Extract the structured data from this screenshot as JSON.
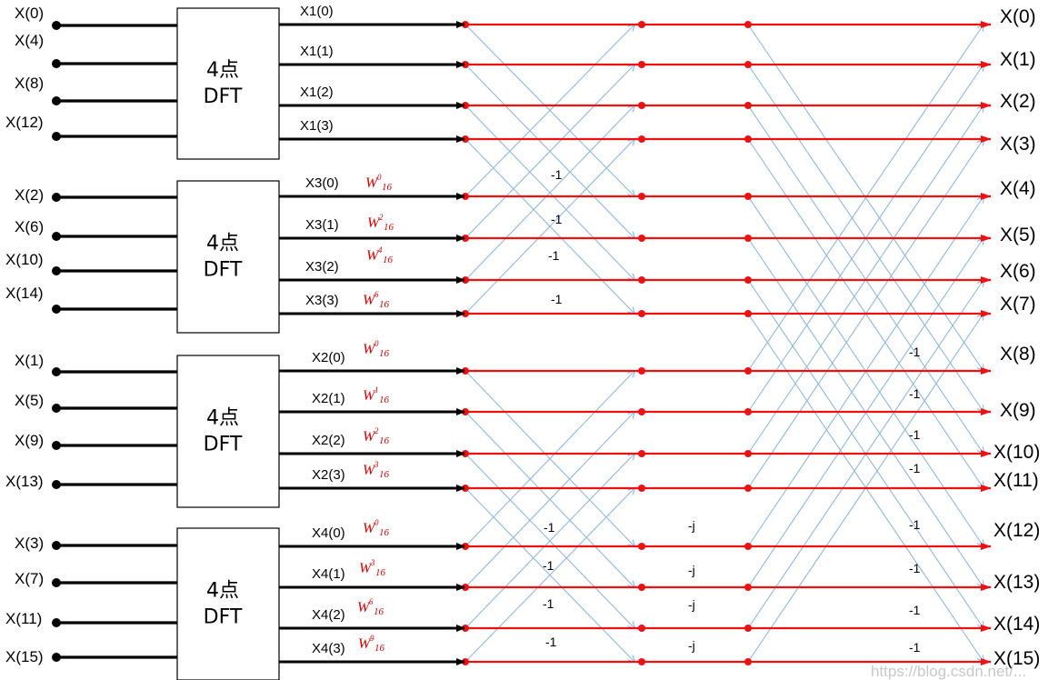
{
  "inputs": [
    "X(0)",
    "X(4)",
    "X(8)",
    "X(12)",
    "X(2)",
    "X(6)",
    "X(10)",
    "X(14)",
    "X(1)",
    "X(5)",
    "X(9)",
    "X(13)",
    "X(3)",
    "X(7)",
    "X(11)",
    "X(15)"
  ],
  "dft_blocks": [
    {
      "line1": "4点",
      "line2": "DFT"
    },
    {
      "line1": "4点",
      "line2": "DFT"
    },
    {
      "line1": "4点",
      "line2": "DFT"
    },
    {
      "line1": "4点",
      "line2": "DFT"
    }
  ],
  "intermediates": [
    "X1(0)",
    "X1(1)",
    "X1(2)",
    "X1(3)",
    "X3(0)",
    "X3(1)",
    "X3(2)",
    "X3(3)",
    "X2(0)",
    "X2(1)",
    "X2(2)",
    "X2(3)",
    "X4(0)",
    "X4(1)",
    "X4(2)",
    "X4(3)"
  ],
  "twiddle_exponents": [
    null,
    null,
    null,
    null,
    "0",
    "2",
    "4",
    "6",
    "0",
    "1",
    "2",
    "3",
    "0",
    "3",
    "6",
    "9"
  ],
  "twiddle_base": "W",
  "twiddle_subscript": "16",
  "stage1_factors": [
    "-1",
    "-1",
    "-1",
    "-1",
    "-1",
    "-1",
    "-1",
    "-1"
  ],
  "stage2_factors": [
    "-j",
    "-j",
    "-j",
    "-j"
  ],
  "stage3_factors": [
    "-1",
    "-1",
    "-1",
    "-1",
    "-1",
    "-1",
    "-1",
    "-1"
  ],
  "outputs": [
    "X(0)",
    "X(1)",
    "X(2)",
    "X(3)",
    "X(4)",
    "X(5)",
    "X(6)",
    "X(7)",
    "X(8)",
    "X(9)",
    "X(10)",
    "X(11)",
    "X(12)",
    "X(13)",
    "X(14)",
    "X(15)"
  ],
  "watermark": "https://blog.csdn.net/...",
  "colors": {
    "signal_line": "#000000",
    "butterfly_line": "#ee1111",
    "cross_line": "#8fb8e0",
    "twiddle": "#e00000"
  }
}
